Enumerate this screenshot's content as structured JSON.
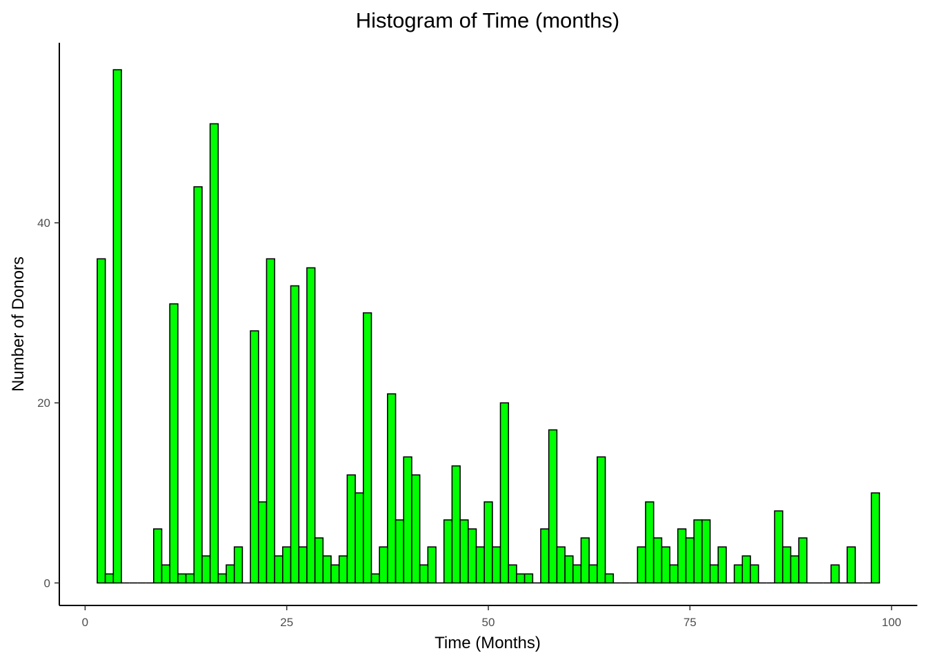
{
  "chart_data": {
    "type": "bar",
    "title": "Histogram of Time (months)",
    "xlabel": "Time (Months)",
    "ylabel": "Number of Donors",
    "xlim": [
      -3.2,
      103.2
    ],
    "ylim": [
      -2.5,
      60
    ],
    "x_ticks": [
      0,
      25,
      50,
      75,
      100
    ],
    "y_ticks": [
      0,
      20,
      40
    ],
    "bin_width": 1,
    "grid": false,
    "legend": "none",
    "colors": {
      "fill": "#00ff00",
      "stroke": "#000000",
      "axis": "#000000",
      "tick_label": "#4d4d4d"
    },
    "bins": [
      {
        "x": 2,
        "count": 36
      },
      {
        "x": 3,
        "count": 1
      },
      {
        "x": 4,
        "count": 57
      },
      {
        "x": 5,
        "count": 0
      },
      {
        "x": 6,
        "count": 0
      },
      {
        "x": 7,
        "count": 0
      },
      {
        "x": 8,
        "count": 0
      },
      {
        "x": 9,
        "count": 6
      },
      {
        "x": 10,
        "count": 2
      },
      {
        "x": 11,
        "count": 31
      },
      {
        "x": 12,
        "count": 1
      },
      {
        "x": 13,
        "count": 1
      },
      {
        "x": 14,
        "count": 44
      },
      {
        "x": 15,
        "count": 3
      },
      {
        "x": 16,
        "count": 51
      },
      {
        "x": 17,
        "count": 1
      },
      {
        "x": 18,
        "count": 2
      },
      {
        "x": 19,
        "count": 4
      },
      {
        "x": 20,
        "count": 0
      },
      {
        "x": 21,
        "count": 28
      },
      {
        "x": 22,
        "count": 9
      },
      {
        "x": 23,
        "count": 36
      },
      {
        "x": 24,
        "count": 3
      },
      {
        "x": 25,
        "count": 4
      },
      {
        "x": 26,
        "count": 33
      },
      {
        "x": 27,
        "count": 4
      },
      {
        "x": 28,
        "count": 35
      },
      {
        "x": 29,
        "count": 5
      },
      {
        "x": 30,
        "count": 3
      },
      {
        "x": 31,
        "count": 2
      },
      {
        "x": 32,
        "count": 3
      },
      {
        "x": 33,
        "count": 12
      },
      {
        "x": 34,
        "count": 10
      },
      {
        "x": 35,
        "count": 30
      },
      {
        "x": 36,
        "count": 1
      },
      {
        "x": 37,
        "count": 4
      },
      {
        "x": 38,
        "count": 21
      },
      {
        "x": 39,
        "count": 7
      },
      {
        "x": 40,
        "count": 14
      },
      {
        "x": 41,
        "count": 12
      },
      {
        "x": 42,
        "count": 2
      },
      {
        "x": 43,
        "count": 4
      },
      {
        "x": 44,
        "count": 0
      },
      {
        "x": 45,
        "count": 7
      },
      {
        "x": 46,
        "count": 13
      },
      {
        "x": 47,
        "count": 7
      },
      {
        "x": 48,
        "count": 6
      },
      {
        "x": 49,
        "count": 4
      },
      {
        "x": 50,
        "count": 9
      },
      {
        "x": 51,
        "count": 4
      },
      {
        "x": 52,
        "count": 20
      },
      {
        "x": 53,
        "count": 2
      },
      {
        "x": 54,
        "count": 1
      },
      {
        "x": 55,
        "count": 1
      },
      {
        "x": 56,
        "count": 0
      },
      {
        "x": 57,
        "count": 6
      },
      {
        "x": 58,
        "count": 17
      },
      {
        "x": 59,
        "count": 4
      },
      {
        "x": 60,
        "count": 3
      },
      {
        "x": 61,
        "count": 2
      },
      {
        "x": 62,
        "count": 5
      },
      {
        "x": 63,
        "count": 2
      },
      {
        "x": 64,
        "count": 14
      },
      {
        "x": 65,
        "count": 1
      },
      {
        "x": 66,
        "count": 0
      },
      {
        "x": 67,
        "count": 0
      },
      {
        "x": 68,
        "count": 0
      },
      {
        "x": 69,
        "count": 4
      },
      {
        "x": 70,
        "count": 9
      },
      {
        "x": 71,
        "count": 5
      },
      {
        "x": 72,
        "count": 4
      },
      {
        "x": 73,
        "count": 2
      },
      {
        "x": 74,
        "count": 6
      },
      {
        "x": 75,
        "count": 5
      },
      {
        "x": 76,
        "count": 7
      },
      {
        "x": 77,
        "count": 7
      },
      {
        "x": 78,
        "count": 2
      },
      {
        "x": 79,
        "count": 4
      },
      {
        "x": 80,
        "count": 0
      },
      {
        "x": 81,
        "count": 2
      },
      {
        "x": 82,
        "count": 3
      },
      {
        "x": 83,
        "count": 2
      },
      {
        "x": 84,
        "count": 0
      },
      {
        "x": 85,
        "count": 0
      },
      {
        "x": 86,
        "count": 8
      },
      {
        "x": 87,
        "count": 4
      },
      {
        "x": 88,
        "count": 3
      },
      {
        "x": 89,
        "count": 5
      },
      {
        "x": 90,
        "count": 0
      },
      {
        "x": 91,
        "count": 0
      },
      {
        "x": 92,
        "count": 0
      },
      {
        "x": 93,
        "count": 2
      },
      {
        "x": 94,
        "count": 0
      },
      {
        "x": 95,
        "count": 4
      },
      {
        "x": 96,
        "count": 0
      },
      {
        "x": 97,
        "count": 0
      },
      {
        "x": 98,
        "count": 10
      }
    ]
  }
}
